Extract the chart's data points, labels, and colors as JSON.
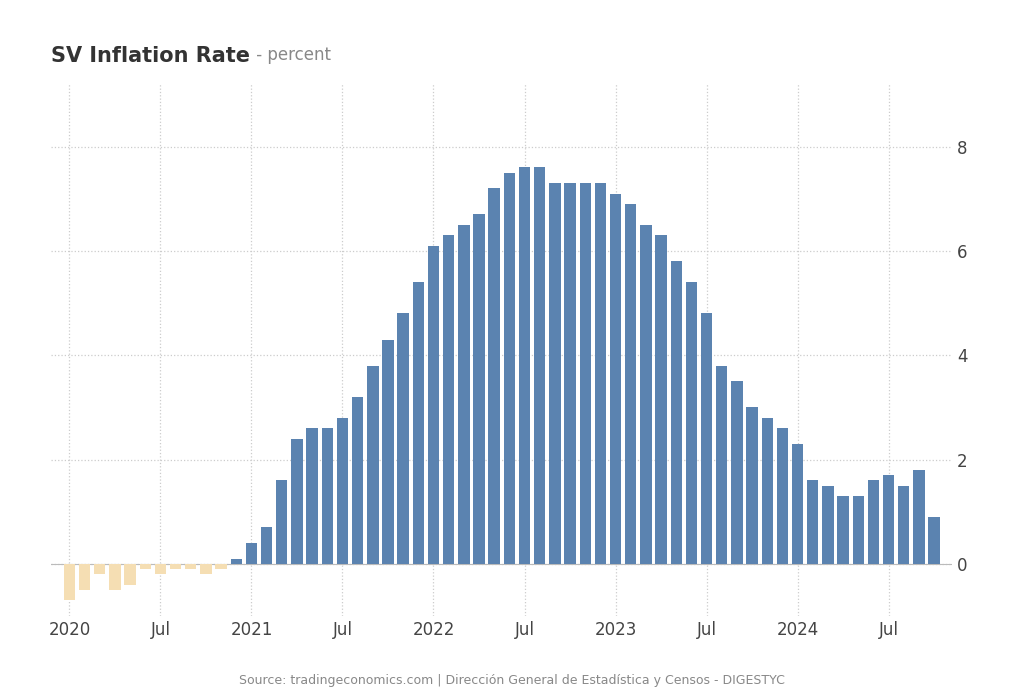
{
  "title": "SV Inflation Rate",
  "title_suffix": " - percent",
  "source": "Source: tradingeconomics.com | Dirección General de Estadística y Censos - DIGESTYC",
  "background_color": "#ffffff",
  "plot_bg_color": "#ffffff",
  "grid_color": "#cccccc",
  "bar_color_positive": "#5b83b0",
  "bar_color_negative": "#f5deb3",
  "ylim": [
    -1.0,
    9.2
  ],
  "yticks": [
    0,
    2,
    4,
    6,
    8
  ],
  "values": [
    -0.7,
    -0.5,
    -0.2,
    -0.5,
    -0.4,
    -0.1,
    -0.2,
    -0.1,
    -0.1,
    -0.2,
    -0.1,
    0.1,
    0.4,
    0.7,
    1.6,
    2.4,
    2.6,
    2.6,
    2.8,
    3.2,
    3.8,
    4.3,
    4.8,
    5.4,
    6.1,
    6.3,
    6.5,
    6.7,
    7.2,
    7.5,
    7.6,
    7.6,
    7.3,
    7.3,
    7.3,
    7.3,
    7.1,
    6.9,
    6.5,
    6.3,
    5.8,
    5.4,
    4.8,
    3.8,
    3.5,
    3.0,
    2.8,
    2.6,
    2.3,
    1.6,
    1.5,
    1.3,
    1.3,
    1.6,
    1.7,
    1.5,
    1.8,
    0.9
  ],
  "xtick_positions": [
    0,
    6,
    12,
    18,
    24,
    30,
    36,
    42,
    48,
    54
  ],
  "xtick_labels": [
    "2020",
    "Jul",
    "2021",
    "Jul",
    "2022",
    "Jul",
    "2023",
    "Jul",
    "2024",
    "Jul"
  ]
}
